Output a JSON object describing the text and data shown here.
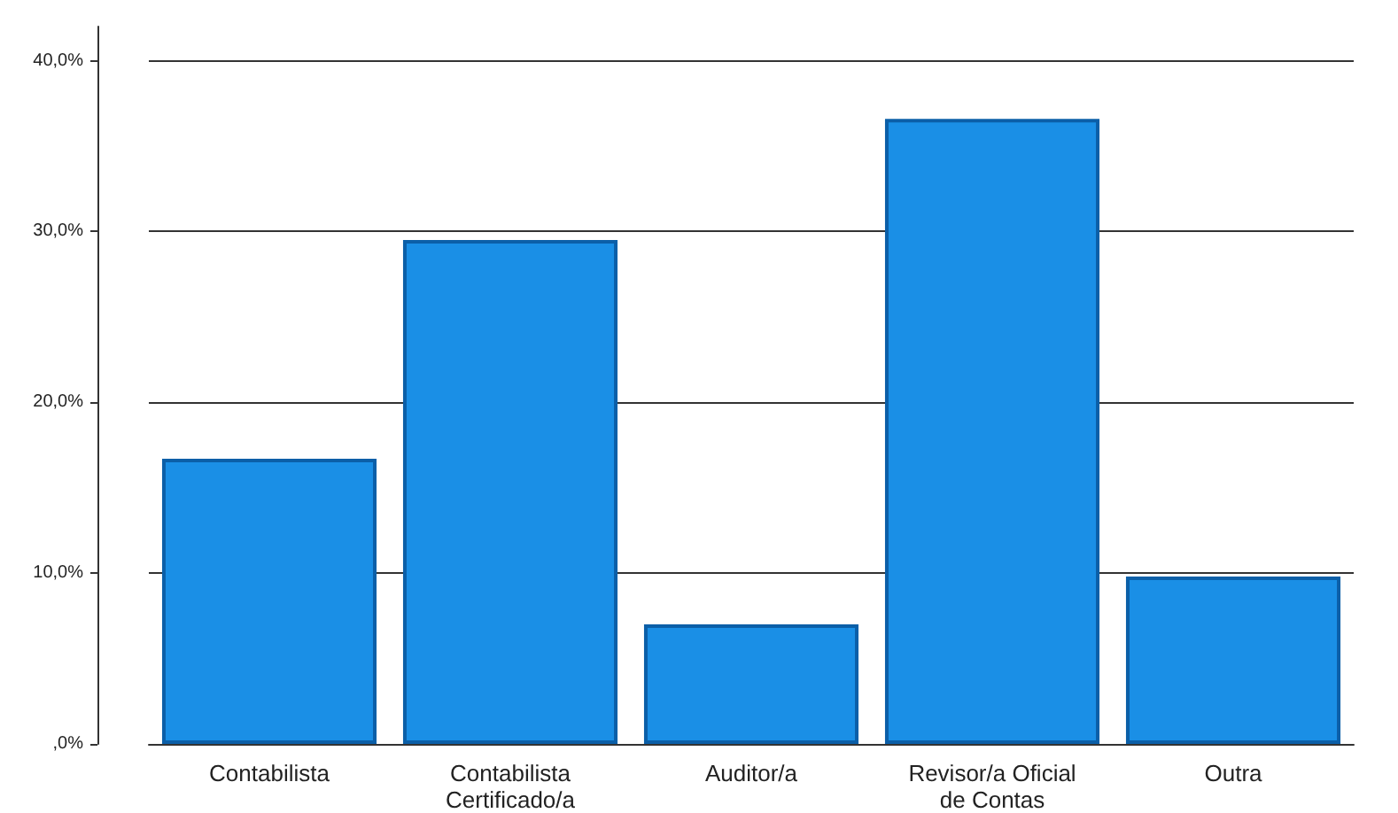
{
  "chart_data": {
    "type": "bar",
    "categories": [
      "Contabilista",
      "Contabilista\nCertificado/a",
      "Auditor/a",
      "Revisor/a Oficial\nde Contas",
      "Outra"
    ],
    "values": [
      16.7,
      29.5,
      7.0,
      36.6,
      9.8
    ],
    "color": "#1a8fe6",
    "ylim": [
      0,
      42
    ],
    "yticks": [
      {
        "value": 0,
        "label": ",0%"
      },
      {
        "value": 10,
        "label": "10,0%"
      },
      {
        "value": 20,
        "label": "20,0%"
      },
      {
        "value": 30,
        "label": "30,0%"
      },
      {
        "value": 40,
        "label": "40,0%"
      }
    ],
    "grid": "y"
  }
}
